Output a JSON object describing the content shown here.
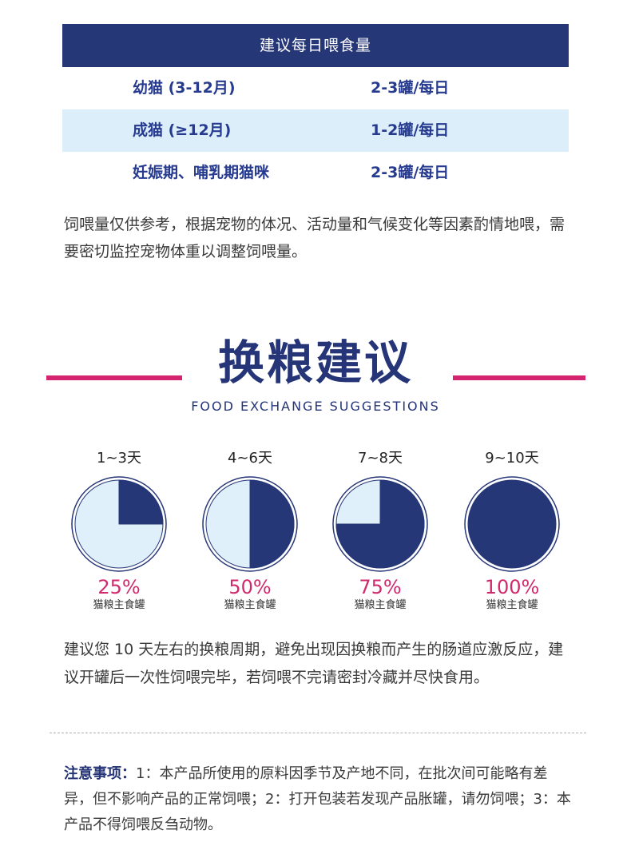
{
  "feeding": {
    "header": "建议每日喂食量",
    "rows": [
      {
        "stage": "幼猫 (3-12月)",
        "amount": "2-3罐/每日"
      },
      {
        "stage": "成猫 (≥12月)",
        "amount": "1-2罐/每日"
      },
      {
        "stage": "妊娠期、哺乳期猫咪",
        "amount": "2-3罐/每日"
      }
    ],
    "note": "饲喂量仅供参考，根据宠物的体况、活动量和气候变化等因素酌情地喂，需要密切监控宠物体重以调整饲喂量。"
  },
  "exchange": {
    "title": "换粮建议",
    "subtitle": "FOOD EXCHANGE SUGGESTIONS",
    "steps": [
      {
        "days": "1~3天",
        "percent_label": "25%",
        "caption": "猫粮主食罐",
        "fraction": 0.25
      },
      {
        "days": "4~6天",
        "percent_label": "50%",
        "caption": "猫粮主食罐",
        "fraction": 0.5
      },
      {
        "days": "7~8天",
        "percent_label": "75%",
        "caption": "猫粮主食罐",
        "fraction": 0.75
      },
      {
        "days": "9~10天",
        "percent_label": "100%",
        "caption": "猫粮主食罐",
        "fraction": 1.0
      }
    ],
    "advice": "建议您 10 天左右的换粮周期，避免出现因换粮而产生的肠道应激反应，建议开罐后一次性饲喂完毕，若饲喂不完请密封冷藏并尽快食用。"
  },
  "notes": {
    "label": "注意事项：",
    "text": "1：本产品所使用的原料因季节及产地不同，在批次间可能略有差异，但不影响产品的正常饲喂；2：打开包装若发现产品胀罐，请勿饲喂；3：本产品不得饲喂反刍动物。"
  },
  "colors": {
    "navy": "#263778",
    "light_blue": "#dbeefa",
    "magenta": "#d4246f",
    "pie_light": "#dff0fb"
  }
}
